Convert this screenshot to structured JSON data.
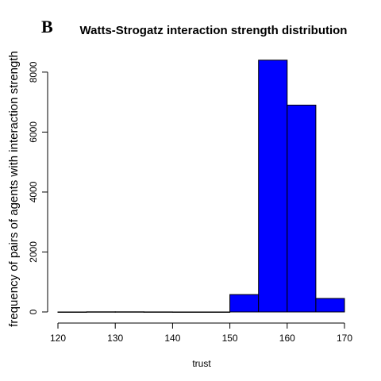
{
  "chart_data": {
    "type": "bar",
    "panel_label": "B",
    "title": "Watts-Strogatz interaction strength distribution",
    "xlabel": "trust",
    "ylabel": "frequency of pairs of agents with interaction strength",
    "xlim": [
      120,
      170
    ],
    "ylim": [
      0,
      8500
    ],
    "x_ticks": [
      120,
      130,
      140,
      150,
      160,
      170
    ],
    "y_ticks": [
      0,
      2000,
      4000,
      6000,
      8000
    ],
    "bins": [
      {
        "start": 120,
        "end": 125,
        "value": 0
      },
      {
        "start": 125,
        "end": 130,
        "value": 5
      },
      {
        "start": 130,
        "end": 135,
        "value": 5
      },
      {
        "start": 135,
        "end": 140,
        "value": 2
      },
      {
        "start": 140,
        "end": 145,
        "value": 0
      },
      {
        "start": 145,
        "end": 150,
        "value": 0
      },
      {
        "start": 150,
        "end": 155,
        "value": 580
      },
      {
        "start": 155,
        "end": 160,
        "value": 8400
      },
      {
        "start": 160,
        "end": 165,
        "value": 6900
      },
      {
        "start": 165,
        "end": 170,
        "value": 450
      }
    ],
    "bar_color": "#0000ff",
    "edge_color": "#000000",
    "grid": false,
    "legend": "none"
  }
}
